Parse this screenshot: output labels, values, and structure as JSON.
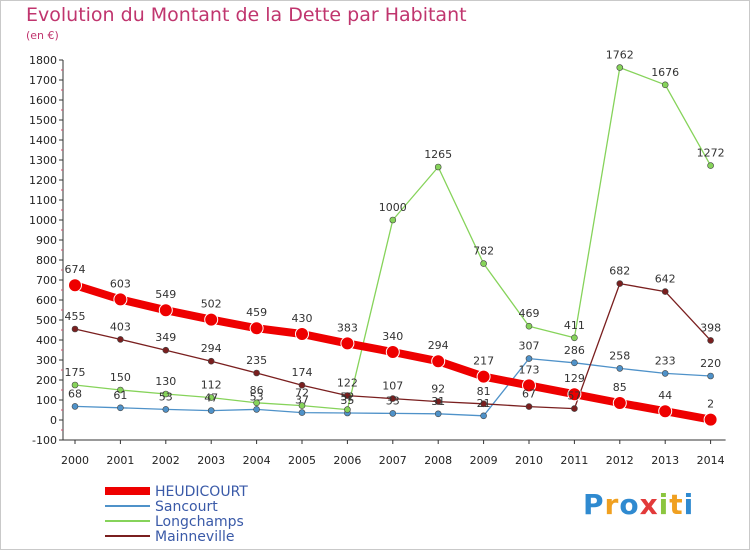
{
  "title": "Evolution du Montant de la Dette par Habitant",
  "unit": "(en €)",
  "logo": {
    "text": "Proxiti",
    "letters": [
      {
        "ch": "P",
        "color": "#2f8ad0"
      },
      {
        "ch": "r",
        "color": "#f0a020"
      },
      {
        "ch": "o",
        "color": "#2f8ad0"
      },
      {
        "ch": "x",
        "color": "#e23a3a"
      },
      {
        "ch": "i",
        "color": "#8cc63f"
      },
      {
        "ch": "t",
        "color": "#f0a020"
      },
      {
        "ch": "i",
        "color": "#2f8ad0"
      }
    ]
  },
  "chart_data": {
    "type": "line",
    "title": "Evolution du Montant de la Dette par Habitant",
    "ylabel": "(en €)",
    "xlabel": "",
    "ylim": [
      -100,
      1800
    ],
    "yticks": [
      -100,
      0,
      100,
      200,
      300,
      400,
      500,
      600,
      700,
      800,
      900,
      1000,
      1100,
      1200,
      1300,
      1400,
      1500,
      1600,
      1700,
      1800
    ],
    "x": [
      "2000",
      "2001",
      "2002",
      "2003",
      "2004",
      "2005",
      "2006",
      "2007",
      "2008",
      "2009",
      "2010",
      "2011",
      "2012",
      "2013",
      "2014"
    ],
    "grid": false,
    "legend_position": "bottom-left",
    "series": [
      {
        "name": "HEUDICOURT",
        "color": "#ee0000",
        "thick": true,
        "values": [
          674,
          603,
          549,
          502,
          459,
          430,
          383,
          340,
          294,
          217,
          173,
          129,
          85,
          44,
          2
        ]
      },
      {
        "name": "Sancourt",
        "color": "#4f92c9",
        "thick": false,
        "values": [
          68,
          61,
          53,
          47,
          53,
          37,
          35,
          33,
          31,
          21,
          307,
          286,
          258,
          233,
          220
        ]
      },
      {
        "name": "Longchamps",
        "color": "#86d35a",
        "thick": false,
        "values": [
          175,
          150,
          130,
          112,
          86,
          72,
          52,
          1000,
          1265,
          782,
          469,
          411,
          1762,
          1676,
          1272
        ]
      },
      {
        "name": "Mainneville",
        "color": "#7a1f1f",
        "thick": false,
        "values": [
          455,
          403,
          349,
          294,
          235,
          174,
          122,
          107,
          92,
          81,
          67,
          57,
          682,
          642,
          398
        ]
      }
    ]
  }
}
